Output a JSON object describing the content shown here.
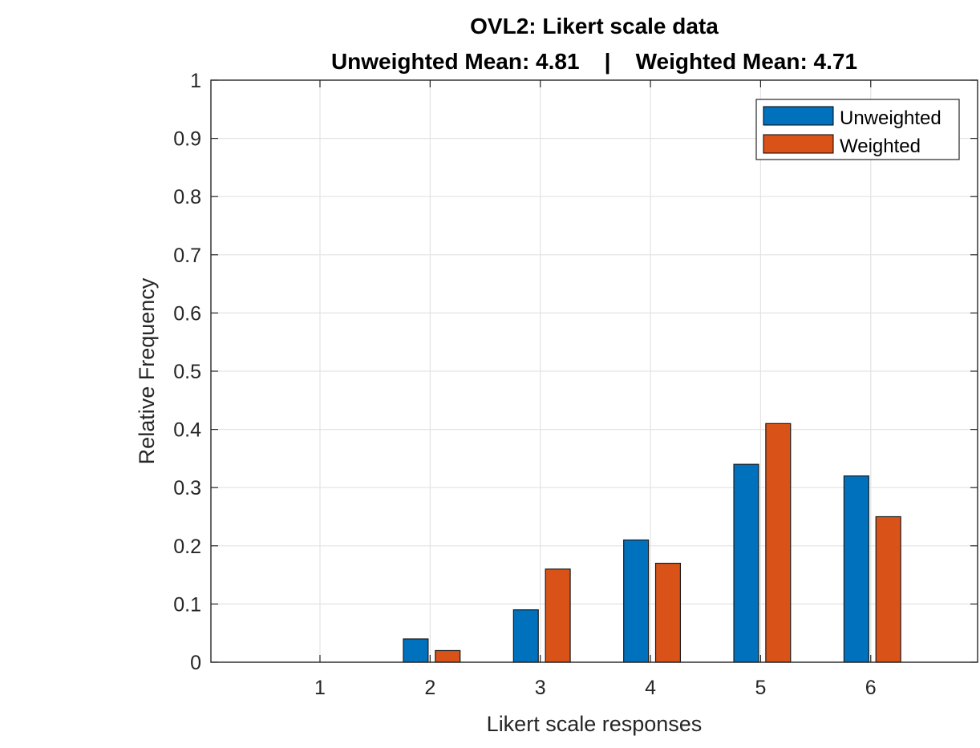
{
  "chart_data": {
    "type": "bar",
    "title": "OVL2: Likert scale data",
    "subtitle": "Unweighted Mean: 4.81    |    Weighted Mean: 4.71",
    "xlabel": "Likert scale responses",
    "ylabel": "Relative Frequency",
    "categories": [
      "1",
      "2",
      "3",
      "4",
      "5",
      "6"
    ],
    "series": [
      {
        "name": "Unweighted",
        "color": "#0072BD",
        "values": [
          0,
          0.04,
          0.09,
          0.21,
          0.34,
          0.32
        ]
      },
      {
        "name": "Weighted",
        "color": "#D95319",
        "values": [
          0,
          0.02,
          0.16,
          0.17,
          0.41,
          0.25
        ]
      }
    ],
    "ylim": [
      0,
      1
    ],
    "yticks": [
      "0",
      "0.1",
      "0.2",
      "0.3",
      "0.4",
      "0.5",
      "0.6",
      "0.7",
      "0.8",
      "0.9",
      "1"
    ],
    "grid": true,
    "legend_position": "top-right"
  }
}
